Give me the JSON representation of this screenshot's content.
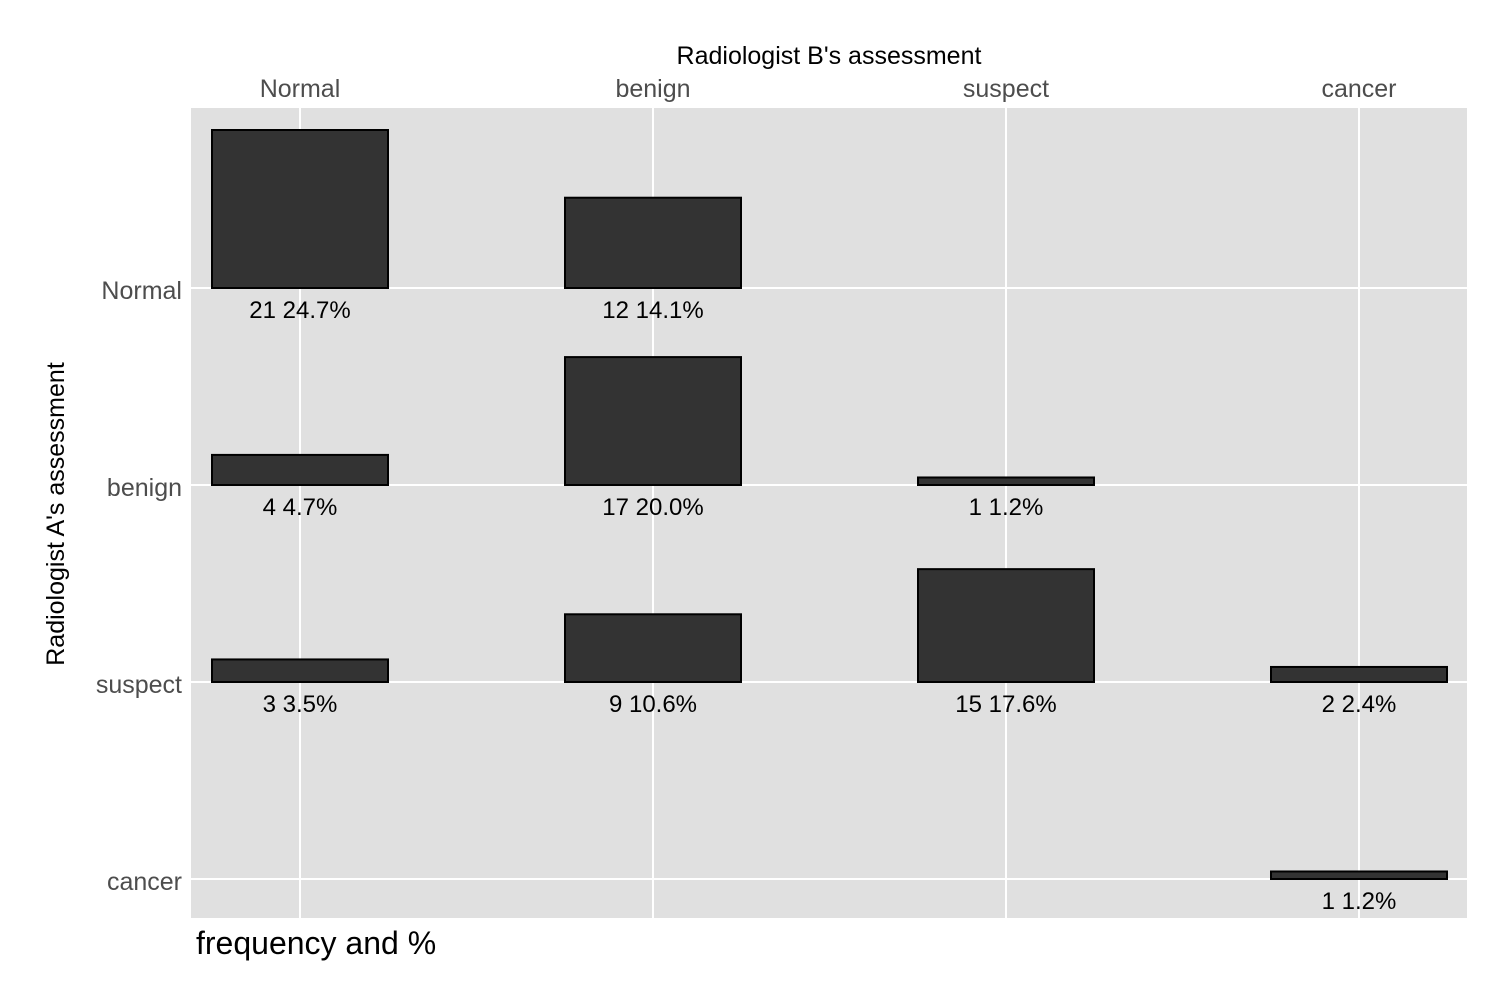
{
  "chart_data": {
    "type": "bar",
    "subtype": "agreement-matrix",
    "title": "",
    "xlabel": "Radiologist B's assessment",
    "ylabel": "Radiologist A's assessment",
    "caption": "frequency and %",
    "x_axis_position": "top",
    "grid": true,
    "colors": {
      "panel_background": "#e0e0e0",
      "grid": "#ffffff",
      "bar_fill": "#333333",
      "bar_stroke": "#000000",
      "tick_label": "#4d4d4d",
      "text": "#000000"
    },
    "x_categories": [
      "Normal",
      "benign",
      "suspect",
      "cancer"
    ],
    "y_categories": [
      "Normal",
      "benign",
      "suspect",
      "cancer"
    ],
    "cells": [
      {
        "a": "Normal",
        "b": "Normal",
        "count": 21,
        "label": "21 24.7%"
      },
      {
        "a": "Normal",
        "b": "benign",
        "count": 12,
        "label": "12 14.1%"
      },
      {
        "a": "benign",
        "b": "Normal",
        "count": 4,
        "label": "4 4.7%"
      },
      {
        "a": "benign",
        "b": "benign",
        "count": 17,
        "label": "17 20.0%"
      },
      {
        "a": "benign",
        "b": "suspect",
        "count": 1,
        "label": "1 1.2%"
      },
      {
        "a": "suspect",
        "b": "Normal",
        "count": 3,
        "label": "3 3.5%"
      },
      {
        "a": "suspect",
        "b": "benign",
        "count": 9,
        "label": "9 10.6%"
      },
      {
        "a": "suspect",
        "b": "suspect",
        "count": 15,
        "label": "15 17.6%"
      },
      {
        "a": "suspect",
        "b": "cancer",
        "count": 2,
        "label": "2 2.4%"
      },
      {
        "a": "cancer",
        "b": "cancer",
        "count": 1,
        "label": "1 1.2%"
      }
    ]
  }
}
